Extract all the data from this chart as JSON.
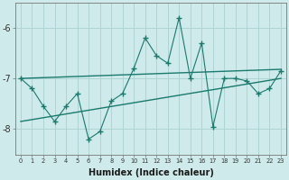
{
  "xlabel": "Humidex (Indice chaleur)",
  "ylabel": "",
  "bg_color": "#ceeaea",
  "grid_color": "#add4d4",
  "line_color": "#1a7a6e",
  "xlim": [
    -0.5,
    23.5
  ],
  "ylim": [
    -8.5,
    -5.5
  ],
  "x_data": [
    0,
    1,
    2,
    3,
    4,
    5,
    6,
    7,
    8,
    9,
    10,
    11,
    12,
    13,
    14,
    15,
    16,
    17,
    18,
    19,
    20,
    21,
    22,
    23
  ],
  "y_data": [
    -7.0,
    -7.2,
    -7.55,
    -7.85,
    -7.55,
    -7.3,
    -8.2,
    -8.05,
    -7.45,
    -7.3,
    -6.8,
    -6.2,
    -6.55,
    -6.7,
    -5.8,
    -7.0,
    -6.3,
    -7.95,
    -7.0,
    -7.0,
    -7.05,
    -7.3,
    -7.2,
    -6.85
  ],
  "trend1_x": [
    0,
    23
  ],
  "trend1_y": [
    -7.0,
    -6.82
  ],
  "trend2_x": [
    0,
    23
  ],
  "trend2_y": [
    -7.85,
    -7.0
  ],
  "ytick_vals": [
    -8,
    -7,
    -6
  ],
  "ytick_labels": [
    "-8",
    "-7",
    "-6"
  ],
  "xticks": [
    0,
    1,
    2,
    3,
    4,
    5,
    6,
    7,
    8,
    9,
    10,
    11,
    12,
    13,
    14,
    15,
    16,
    17,
    18,
    19,
    20,
    21,
    22,
    23
  ]
}
